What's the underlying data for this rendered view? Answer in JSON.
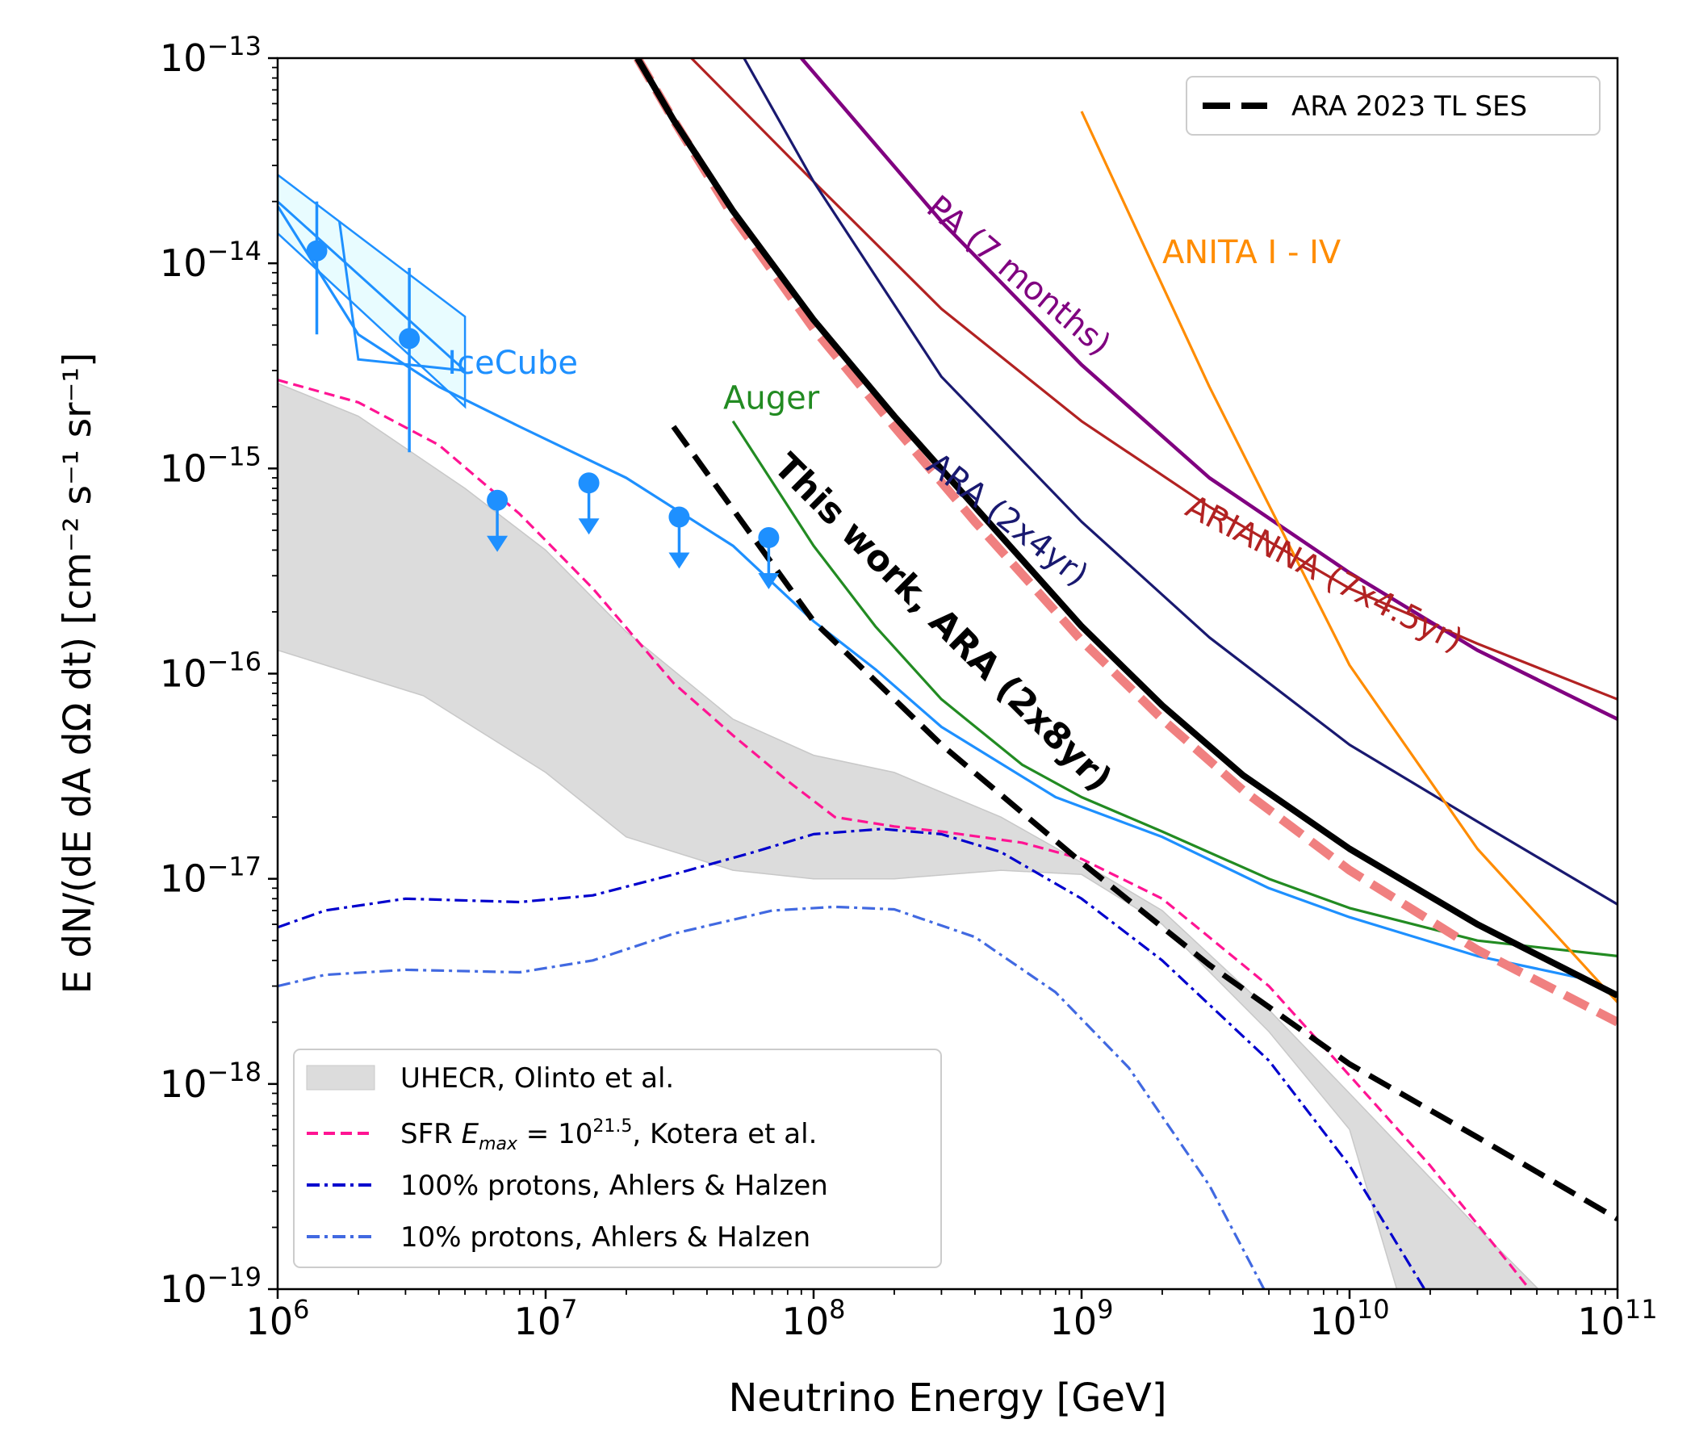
{
  "chart_data": {
    "type": "line",
    "xscale": "log",
    "yscale": "log",
    "xlim": [
      1000000.0,
      100000000000.0
    ],
    "ylim": [
      1e-19,
      1e-13
    ],
    "xlabel": "Neutrino Energy [GeV]",
    "ylabel": "E dN/(dE dA dΩ dt) [cm⁻² s⁻¹ sr⁻¹]",
    "x_ticks": [
      {
        "value": 1000000.0,
        "base": "10",
        "exp": "6"
      },
      {
        "value": 10000000.0,
        "base": "10",
        "exp": "7"
      },
      {
        "value": 100000000.0,
        "base": "10",
        "exp": "8"
      },
      {
        "value": 1000000000.0,
        "base": "10",
        "exp": "9"
      },
      {
        "value": 10000000000.0,
        "base": "10",
        "exp": "10"
      },
      {
        "value": 100000000000.0,
        "base": "10",
        "exp": "11"
      }
    ],
    "y_ticks": [
      {
        "value": 1e-13,
        "base": "10",
        "exp": "−13"
      },
      {
        "value": 1e-14,
        "base": "10",
        "exp": "−14"
      },
      {
        "value": 1e-15,
        "base": "10",
        "exp": "−15"
      },
      {
        "value": 1e-16,
        "base": "10",
        "exp": "−16"
      },
      {
        "value": 1e-17,
        "base": "10",
        "exp": "−17"
      },
      {
        "value": 1e-18,
        "base": "10",
        "exp": "−18"
      },
      {
        "value": 1e-19,
        "base": "10",
        "exp": "−19"
      }
    ],
    "band": {
      "name": "UHECR, Olinto et al.",
      "color": "#dcdcdc",
      "upper": [
        [
          1000000.0,
          2.6e-15
        ],
        [
          2000000.0,
          1.8e-15
        ],
        [
          5000000.0,
          8e-16
        ],
        [
          10000000.0,
          4e-16
        ],
        [
          20000000.0,
          1.6e-16
        ],
        [
          50000000.0,
          6e-17
        ],
        [
          100000000.0,
          4e-17
        ],
        [
          200000000.0,
          3.3e-17
        ],
        [
          500000000.0,
          2e-17
        ],
        [
          1000000000.0,
          1.2e-17
        ],
        [
          2000000000.0,
          7e-18
        ],
        [
          5000000000.0,
          2.3e-18
        ],
        [
          10000000000.0,
          9e-19
        ],
        [
          30000000000.0,
          2e-19
        ],
        [
          60000000000.0,
          8e-20
        ]
      ],
      "lower": [
        [
          1000000.0,
          1.3e-16
        ],
        [
          3500000.0,
          7.8e-17
        ],
        [
          10000000.0,
          3.3e-17
        ],
        [
          20000000.0,
          1.6e-17
        ],
        [
          50000000.0,
          1.1e-17
        ],
        [
          100000000.0,
          1e-17
        ],
        [
          200000000.0,
          1e-17
        ],
        [
          500000000.0,
          1.1e-17
        ],
        [
          1000000000.0,
          1.05e-17
        ],
        [
          2000000000.0,
          6e-18
        ],
        [
          5000000000.0,
          1.8e-18
        ],
        [
          10000000000.0,
          6e-19
        ],
        [
          15000000000.0,
          1e-19
        ]
      ]
    },
    "series": [
      {
        "name": "SFR E_max = 10^21.5, Kotera et al.",
        "color": "#ff1493",
        "width": 3.2,
        "dash": "13,7",
        "points": [
          [
            1000000.0,
            2.7e-15
          ],
          [
            2000000.0,
            2.1e-15
          ],
          [
            4000000.0,
            1.3e-15
          ],
          [
            8000000.0,
            6e-16
          ],
          [
            15000000.0,
            2.6e-16
          ],
          [
            30000000.0,
            9e-17
          ],
          [
            50000000.0,
            5e-17
          ],
          [
            80000000.0,
            3e-17
          ],
          [
            120000000.0,
            2e-17
          ],
          [
            200000000.0,
            1.8e-17
          ],
          [
            300000000.0,
            1.7e-17
          ],
          [
            600000000.0,
            1.5e-17
          ],
          [
            1000000000.0,
            1.25e-17
          ],
          [
            2000000000.0,
            8e-18
          ],
          [
            5000000000.0,
            3e-18
          ],
          [
            10000000000.0,
            1.1e-18
          ],
          [
            20000000000.0,
            4e-19
          ],
          [
            40000000000.0,
            1.3e-19
          ],
          [
            50000000000.0,
            9e-20
          ]
        ]
      },
      {
        "name": "100% protons, Ahlers & Halzen",
        "color": "#0000cd",
        "width": 3.2,
        "dash": "16,6,4,6",
        "points": [
          [
            1000000.0,
            5.8e-18
          ],
          [
            1500000.0,
            7e-18
          ],
          [
            3000000.0,
            8e-18
          ],
          [
            8000000.0,
            7.7e-18
          ],
          [
            15000000.0,
            8.3e-18
          ],
          [
            30000000.0,
            1.05e-17
          ],
          [
            60000000.0,
            1.35e-17
          ],
          [
            100000000.0,
            1.65e-17
          ],
          [
            180000000.0,
            1.75e-17
          ],
          [
            300000000.0,
            1.65e-17
          ],
          [
            500000000.0,
            1.35e-17
          ],
          [
            1000000000.0,
            8e-18
          ],
          [
            2000000000.0,
            4e-18
          ],
          [
            5000000000.0,
            1.3e-18
          ],
          [
            10000000000.0,
            4e-19
          ],
          [
            20000000000.0,
            9e-20
          ]
        ]
      },
      {
        "name": "10% protons, Ahlers & Halzen",
        "color": "#4169e1",
        "width": 3.2,
        "dash": "16,6,4,6",
        "points": [
          [
            1000000.0,
            3e-18
          ],
          [
            1500000.0,
            3.4e-18
          ],
          [
            3000000.0,
            3.6e-18
          ],
          [
            8000000.0,
            3.5e-18
          ],
          [
            15000000.0,
            4e-18
          ],
          [
            30000000.0,
            5.4e-18
          ],
          [
            70000000.0,
            7e-18
          ],
          [
            120000000.0,
            7.3e-18
          ],
          [
            200000000.0,
            7.1e-18
          ],
          [
            400000000.0,
            5.2e-18
          ],
          [
            800000000.0,
            2.8e-18
          ],
          [
            1500000000.0,
            1.2e-18
          ],
          [
            3000000000.0,
            3.2e-19
          ],
          [
            5000000000.0,
            9e-20
          ]
        ]
      },
      {
        "name": "IceCube",
        "color": "#1e90ff",
        "width": 3.2,
        "dash": "",
        "points": [
          [
            1000000.0,
            1.9e-14
          ],
          [
            2000000.0,
            4.5e-15
          ],
          [
            4000000.0,
            2.5e-15
          ],
          [
            8000000.0,
            1.6e-15
          ],
          [
            20000000.0,
            9e-16
          ],
          [
            50000000.0,
            4.2e-16
          ],
          [
            100000000.0,
            1.8e-16
          ],
          [
            170000000.0,
            1.05e-16
          ],
          [
            300000000.0,
            5.5e-17
          ],
          [
            800000000.0,
            2.5e-17
          ],
          [
            2000000000.0,
            1.6e-17
          ],
          [
            5000000000.0,
            9e-18
          ],
          [
            10000000000.0,
            6.5e-18
          ],
          [
            30000000000.0,
            4.2e-18
          ],
          [
            80000000000.0,
            3.2e-18
          ]
        ]
      },
      {
        "name": "Auger",
        "color": "#228b22",
        "width": 3.2,
        "dash": "",
        "points": [
          [
            50000000.0,
            1.7e-15
          ],
          [
            100000000.0,
            4.2e-16
          ],
          [
            170000000.0,
            1.7e-16
          ],
          [
            300000000.0,
            7.5e-17
          ],
          [
            600000000.0,
            3.6e-17
          ],
          [
            1000000000.0,
            2.5e-17
          ],
          [
            2000000000.0,
            1.7e-17
          ],
          [
            5000000000.0,
            1e-17
          ],
          [
            10000000000.0,
            7.2e-18
          ],
          [
            30000000000.0,
            5e-18
          ],
          [
            100000000000.0,
            4.2e-18
          ]
        ]
      },
      {
        "name": "ARIANNA (7x4.5yr)",
        "color": "#b22222",
        "width": 3.2,
        "dash": "",
        "points": [
          [
            35000000.0,
            1e-13
          ],
          [
            100000000.0,
            2.5e-14
          ],
          [
            300000000.0,
            6e-15
          ],
          [
            1000000000.0,
            1.7e-15
          ],
          [
            3000000000.0,
            6.5e-16
          ],
          [
            10000000000.0,
            2.6e-16
          ],
          [
            30000000000.0,
            1.4e-16
          ],
          [
            100000000000.0,
            7.5e-17
          ]
        ]
      },
      {
        "name": "ARA (2x4yr)",
        "color": "#191970",
        "width": 3.2,
        "dash": "",
        "points": [
          [
            55000000.0,
            1e-13
          ],
          [
            100000000.0,
            2.5e-14
          ],
          [
            300000000.0,
            2.8e-15
          ],
          [
            1000000000.0,
            5.5e-16
          ],
          [
            3000000000.0,
            1.5e-16
          ],
          [
            10000000000.0,
            4.5e-17
          ],
          [
            30000000000.0,
            1.9e-17
          ],
          [
            100000000000.0,
            7.5e-18
          ]
        ]
      },
      {
        "name": "PA (7 months)",
        "color": "#800080",
        "width": 4.5,
        "dash": "",
        "points": [
          [
            90000000.0,
            1e-13
          ],
          [
            300000000.0,
            1.6e-14
          ],
          [
            1000000000.0,
            3.2e-15
          ],
          [
            3000000000.0,
            9e-16
          ],
          [
            10000000000.0,
            3.1e-16
          ],
          [
            30000000000.0,
            1.3e-16
          ],
          [
            100000000000.0,
            6e-17
          ]
        ]
      },
      {
        "name": "ANITA I - IV",
        "color": "#ff8c00",
        "width": 3.2,
        "dash": "",
        "points": [
          [
            1000000000.0,
            5.5e-14
          ],
          [
            3000000000.0,
            2.5e-15
          ],
          [
            10000000000.0,
            1.1e-16
          ],
          [
            30000000000.0,
            1.4e-17
          ],
          [
            100000000000.0,
            2.5e-18
          ]
        ]
      },
      {
        "name": "ARA 2023 TL SES",
        "color": "#000000",
        "width": 7,
        "dash": "30,14",
        "points": [
          [
            30000000.0,
            1.6e-15
          ],
          [
            100000000.0,
            1.8e-16
          ],
          [
            300000000.0,
            4.5e-17
          ],
          [
            1000000000.0,
            1.2e-17
          ],
          [
            3000000000.0,
            3.8e-18
          ],
          [
            10000000000.0,
            1.25e-18
          ],
          [
            30000000000.0,
            5.5e-19
          ],
          [
            100000000000.0,
            2.2e-19
          ]
        ]
      },
      {
        "name": "This work dashed",
        "color": "#f08080",
        "width": 11,
        "dash": "32,14",
        "points": [
          [
            22000000.0,
            1e-13
          ],
          [
            30000000.0,
            5e-14
          ],
          [
            50000000.0,
            1.7e-14
          ],
          [
            100000000.0,
            4.8e-15
          ],
          [
            200000000.0,
            1.6e-15
          ],
          [
            400000000.0,
            5.5e-16
          ],
          [
            1000000000.0,
            1.45e-16
          ],
          [
            2000000000.0,
            6e-17
          ],
          [
            4000000000.0,
            2.7e-17
          ],
          [
            10000000000.0,
            1.1e-17
          ],
          [
            30000000000.0,
            4.5e-18
          ],
          [
            100000000000.0,
            2e-18
          ]
        ]
      },
      {
        "name": "This work, ARA (2x8yr)",
        "color": "#000000",
        "width": 8,
        "dash": "",
        "points": [
          [
            22000000.0,
            1e-13
          ],
          [
            30000000.0,
            5e-14
          ],
          [
            50000000.0,
            1.8e-14
          ],
          [
            100000000.0,
            5.3e-15
          ],
          [
            200000000.0,
            1.8e-15
          ],
          [
            400000000.0,
            6.5e-16
          ],
          [
            1000000000.0,
            1.7e-16
          ],
          [
            2000000000.0,
            7e-17
          ],
          [
            4000000000.0,
            3.2e-17
          ],
          [
            10000000000.0,
            1.4e-17
          ],
          [
            30000000000.0,
            6e-18
          ],
          [
            100000000000.0,
            2.7e-18
          ]
        ]
      }
    ],
    "icecube_points": [
      {
        "x": 1400000.0,
        "y": 1.15e-14,
        "ylo": 4.5e-15,
        "yhi": 2e-14,
        "upper_limit": false
      },
      {
        "x": 3100000.0,
        "y": 4.3e-15,
        "ylo": 1.2e-15,
        "yhi": 9.5e-15,
        "upper_limit": false
      },
      {
        "x": 6600000.0,
        "y": 7e-16,
        "upper_limit": true
      },
      {
        "x": 14500000.0,
        "y": 8.5e-16,
        "upper_limit": true
      },
      {
        "x": 31500000.0,
        "y": 5.8e-16,
        "upper_limit": true
      },
      {
        "x": 68000000.0,
        "y": 4.6e-16,
        "upper_limit": true
      }
    ],
    "icecube_box": [
      [
        1000000.0,
        2.7e-14
      ],
      [
        5000000.0,
        5.5e-15
      ],
      [
        5000000.0,
        2e-15
      ],
      [
        1000000.0,
        1.4e-14
      ]
    ],
    "icecube_box_lines": [
      [
        [
          1000000.0,
          2e-14
        ],
        [
          5000000.0,
          3e-15
        ]
      ],
      [
        [
          1700000.0,
          1.6e-14
        ],
        [
          2000000.0,
          3.4e-15
        ],
        [
          5000000.0,
          3e-15
        ]
      ]
    ],
    "annotations": [
      {
        "text": "IceCube",
        "color": "#1e90ff",
        "x": 4300000.0,
        "y": 2.9e-15,
        "rotate": 0,
        "bold": false
      },
      {
        "text": "Auger",
        "color": "#228b22",
        "x": 46000000.0,
        "y": 1.95e-15,
        "rotate": 0,
        "bold": false
      },
      {
        "text": "PA (7 months)",
        "color": "#800080",
        "x": 260000000.0,
        "y": 1.8e-14,
        "rotate": 40,
        "bold": false
      },
      {
        "text": "ANITA I - IV",
        "color": "#ff8c00",
        "x": 2000000000.0,
        "y": 1e-14,
        "rotate": 0,
        "bold": false
      },
      {
        "text": "ARA (2x4yr)",
        "color": "#191970",
        "x": 260000000.0,
        "y": 1e-15,
        "rotate": 38,
        "bold": false
      },
      {
        "text": "ARIANNA (7x4.5yr)",
        "color": "#b22222",
        "x": 2400000000.0,
        "y": 6e-16,
        "rotate": 27,
        "bold": false
      },
      {
        "text": "This work, ARA (2x8yr)",
        "color": "#000000",
        "x": 70000000.0,
        "y": 1e-15,
        "rotate": 45,
        "bold": true
      }
    ],
    "legend_top": {
      "position": "top-right",
      "entries": [
        {
          "label": "ARA 2023 TL SES",
          "color": "#000000",
          "style": "dashed"
        }
      ]
    },
    "legend_bottom": {
      "position": "lower-left",
      "entries": [
        {
          "label": "UHECR, Olinto et al.",
          "color": "#dcdcdc",
          "style": "patch"
        },
        {
          "label_pre": "SFR ",
          "label_math": "E",
          "label_sub": "max",
          "label_mid": " = 10",
          "label_sup": "21.5",
          "label_post": ", Kotera et al.",
          "color": "#ff1493",
          "style": "dashed"
        },
        {
          "label": "100% protons, Ahlers & Halzen",
          "color": "#0000cd",
          "style": "dashdot"
        },
        {
          "label": "10% protons, Ahlers & Halzen",
          "color": "#4169e1",
          "style": "dashdot"
        }
      ]
    }
  }
}
